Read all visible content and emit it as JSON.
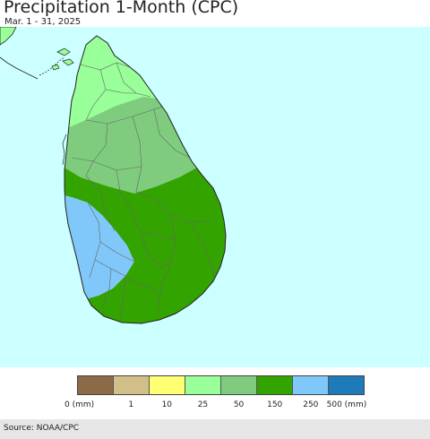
{
  "title": "Precipitation 1-Month (CPC)",
  "date_range": "Mar. 1 - 31, 2025",
  "source": "Source: NOAA/CPC",
  "colors": {
    "ocean": "#ccffff",
    "india": "#99ff99",
    "region_north": "#99ff99",
    "region_dry_zone": "#7fcc7f",
    "region_south_east": "#33a300",
    "region_south_west": "#80c8fa",
    "district_border": "#666666",
    "coast": "#222222"
  },
  "legend": {
    "units": "mm",
    "bins": [
      {
        "label": "0 (mm)",
        "color": "#8b6a47"
      },
      {
        "label": "1",
        "color": "#d2bf88"
      },
      {
        "label": "10",
        "color": "#ffff73"
      },
      {
        "label": "25",
        "color": "#99ff99"
      },
      {
        "label": "50",
        "color": "#7fcc7f"
      },
      {
        "label": "150",
        "color": "#33a300"
      },
      {
        "label": "250",
        "color": "#80c8fa"
      },
      {
        "label": "500 (mm)",
        "color": "#1e7ab8"
      }
    ]
  }
}
